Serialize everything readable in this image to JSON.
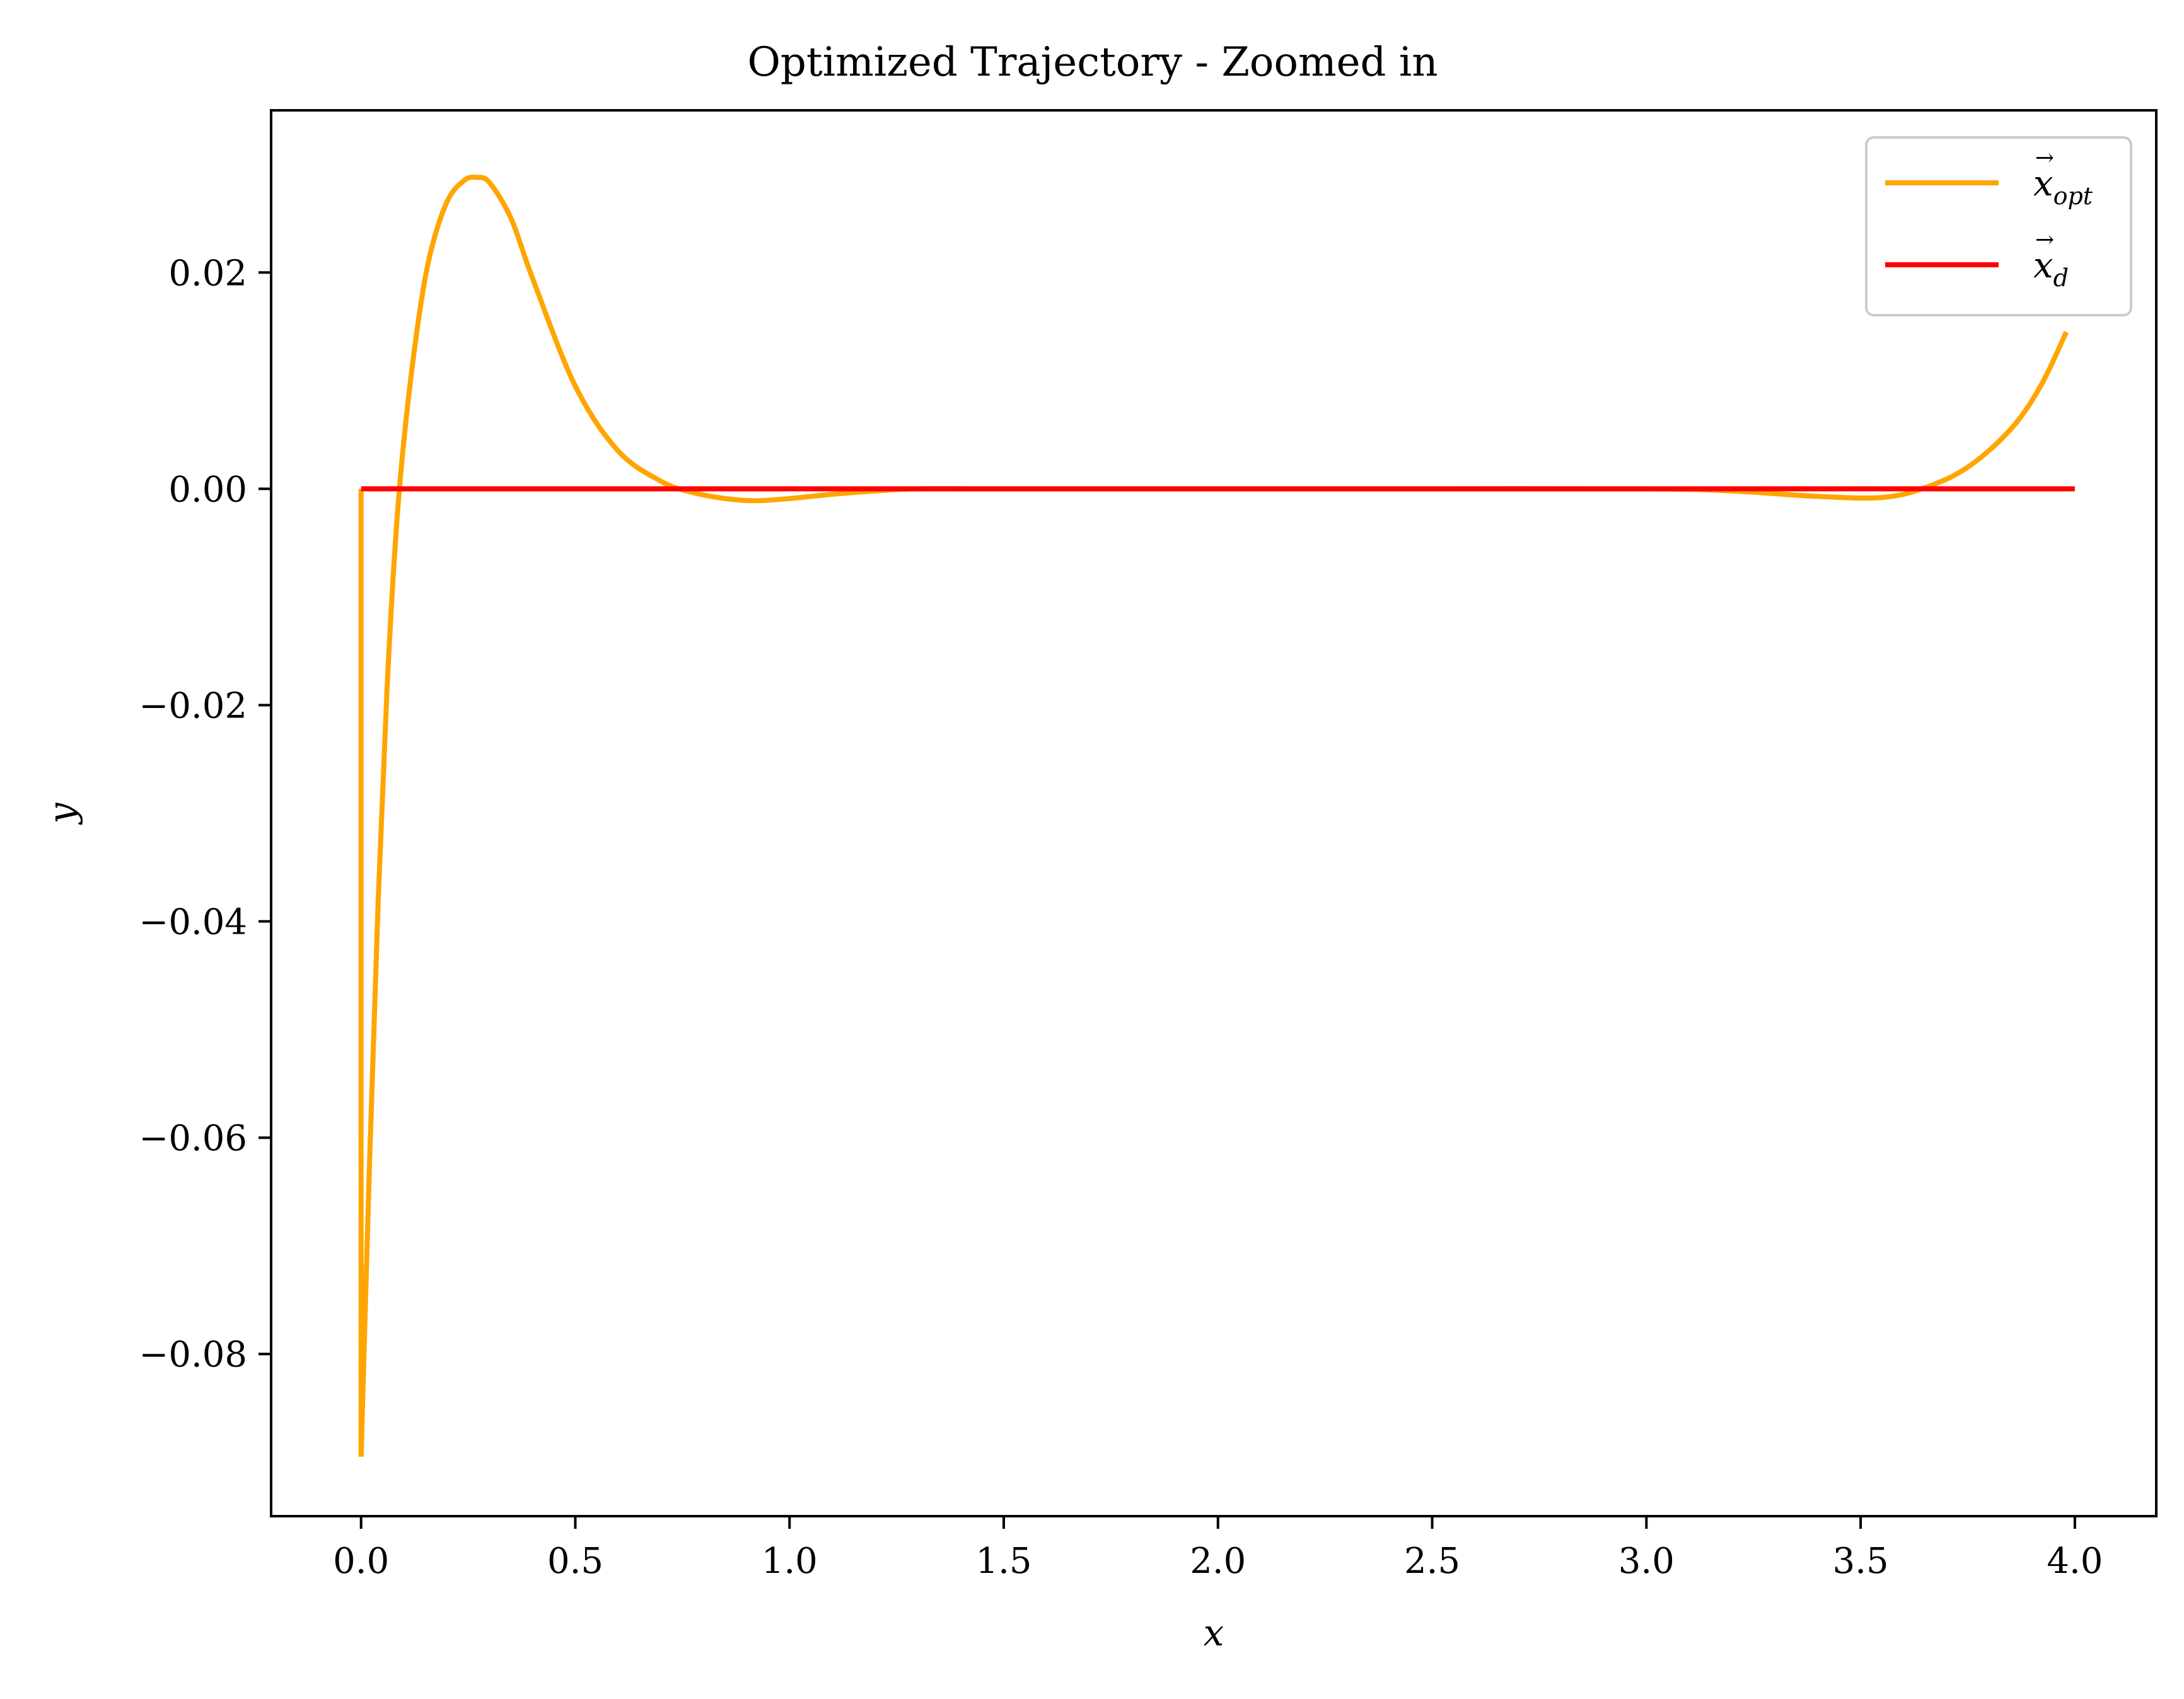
{
  "chart_data": {
    "type": "line",
    "title": "Optimized Trajectory - Zoomed in",
    "xlabel": "x",
    "ylabel": "y",
    "xlim": [
      -0.21,
      4.19
    ],
    "ylim": [
      -0.095,
      0.035
    ],
    "grid": false,
    "legend_position": "top-right",
    "x_ticks": [
      0.0,
      0.5,
      1.0,
      1.5,
      2.0,
      2.5,
      3.0,
      3.5,
      4.0
    ],
    "x_tick_labels": [
      "0.0",
      "0.5",
      "1.0",
      "1.5",
      "2.0",
      "2.5",
      "3.0",
      "3.5",
      "4.0"
    ],
    "y_ticks": [
      -0.08,
      -0.06,
      -0.04,
      -0.02,
      0.0,
      0.02
    ],
    "y_tick_labels": [
      "−0.08",
      "−0.06",
      "−0.04",
      "−0.02",
      "0.00",
      "0.02"
    ],
    "series": [
      {
        "name": "x",
        "name_subscript": "opt",
        "color": "#FFA500",
        "x": [
          0.0,
          0.02,
          0.04,
          0.06,
          0.08,
          0.1,
          0.13,
          0.16,
          0.2,
          0.24,
          0.27,
          0.3,
          0.35,
          0.4,
          0.5,
          0.6,
          0.7,
          0.77,
          0.85,
          0.92,
          1.0,
          1.1,
          1.2,
          1.3,
          1.5,
          2.0,
          2.5,
          3.0,
          3.2,
          3.4,
          3.55,
          3.65,
          3.75,
          3.85,
          3.92,
          3.98
        ],
        "y": [
          -0.0895,
          -0.062,
          -0.038,
          -0.019,
          -0.005,
          0.0045,
          0.0145,
          0.0215,
          0.0265,
          0.0285,
          0.0288,
          0.0283,
          0.025,
          0.0195,
          0.0095,
          0.0035,
          0.0007,
          -0.0003,
          -0.0009,
          -0.0011,
          -0.0009,
          -0.0005,
          -0.0002,
          0.0,
          0.0,
          0.0,
          0.0,
          0.0,
          -0.0002,
          -0.0007,
          -0.0008,
          0.0001,
          0.002,
          0.0055,
          0.0095,
          0.0145
        ]
      },
      {
        "name": "x",
        "name_subscript": "d",
        "color": "#FF0000",
        "x": [
          0.0,
          4.0
        ],
        "y": [
          0.0,
          0.0
        ]
      }
    ]
  }
}
